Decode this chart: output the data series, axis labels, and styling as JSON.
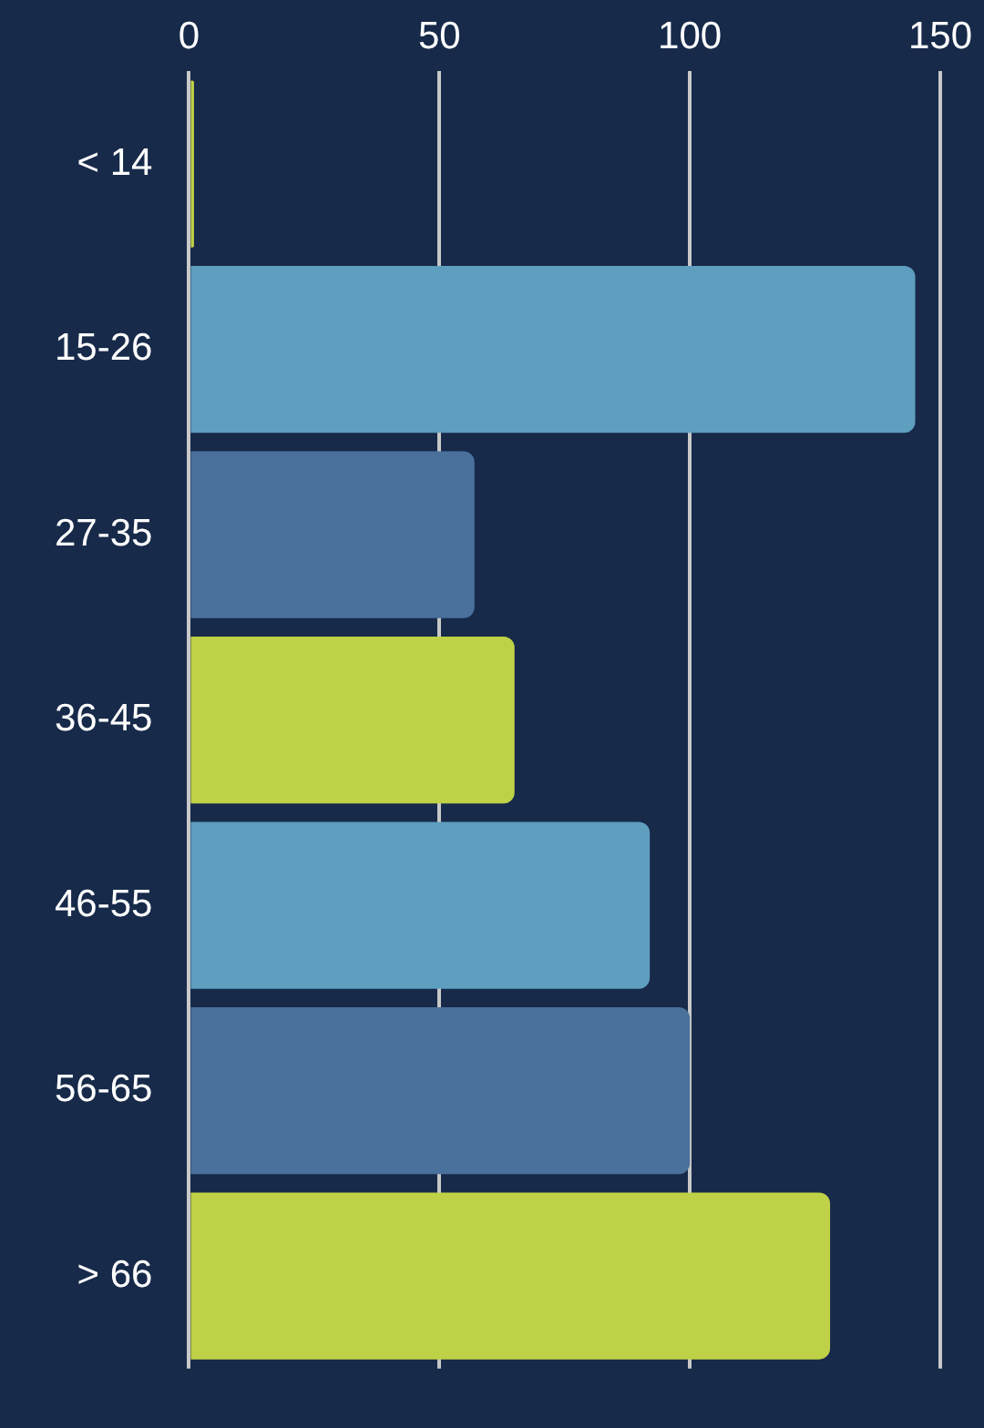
{
  "chart_data": {
    "type": "bar",
    "orientation": "horizontal",
    "categories": [
      "< 14",
      "15-26",
      "27-35",
      "36-45",
      "46-55",
      "56-65",
      "> 66"
    ],
    "values": [
      1,
      145,
      57,
      65,
      92,
      100,
      128
    ],
    "colors": [
      "#bfd146",
      "#5e9ebf",
      "#4a709c",
      "#bfd146",
      "#5e9ebf",
      "#4a709c",
      "#bfd146"
    ],
    "xlim": [
      0,
      150
    ],
    "xticks": [
      0,
      50,
      100,
      150
    ],
    "grid": "x"
  }
}
